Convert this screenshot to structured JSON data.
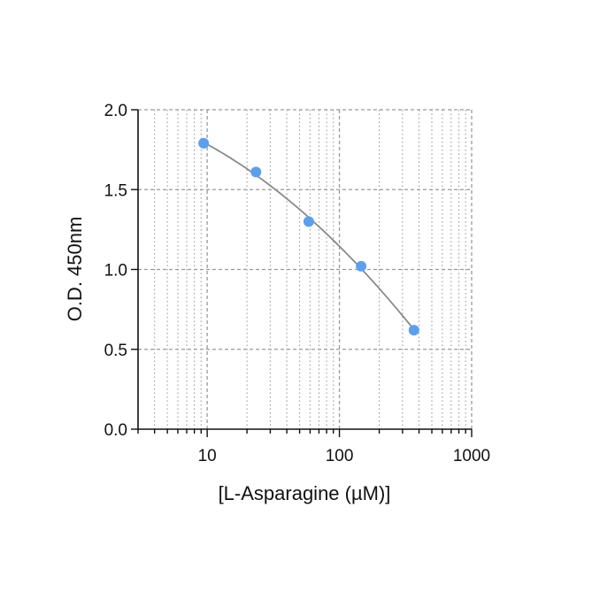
{
  "chart_data": {
    "type": "scatter",
    "title": "",
    "xlabel": "[L-Asparagine (µM)]",
    "ylabel": "O.D. 450nm",
    "x_scale": "log",
    "xlim": [
      3,
      1000
    ],
    "ylim": [
      0,
      2.0
    ],
    "grid": true,
    "x_ticks": [
      {
        "value": 10,
        "label": "10"
      },
      {
        "value": 100,
        "label": "100"
      },
      {
        "value": 1000,
        "label": "1000"
      }
    ],
    "y_ticks": [
      {
        "value": 0,
        "label": "0.0"
      },
      {
        "value": 0.5,
        "label": "0.5"
      },
      {
        "value": 1.0,
        "label": "1.0"
      },
      {
        "value": 1.5,
        "label": "1.5"
      },
      {
        "value": 2.0,
        "label": "2.0"
      }
    ],
    "series": [
      {
        "points": [
          {
            "x": 9.4,
            "y": 1.79
          },
          {
            "x": 23.4,
            "y": 1.61
          },
          {
            "x": 58.6,
            "y": 1.3
          },
          {
            "x": 146,
            "y": 1.02
          },
          {
            "x": 366,
            "y": 0.62
          }
        ],
        "fit_line": true
      }
    ],
    "colors": {
      "point": "#5b9ff0",
      "fit_line": "#8a8a8a",
      "grid": "#9a9a9a",
      "axis": "#111111"
    }
  }
}
